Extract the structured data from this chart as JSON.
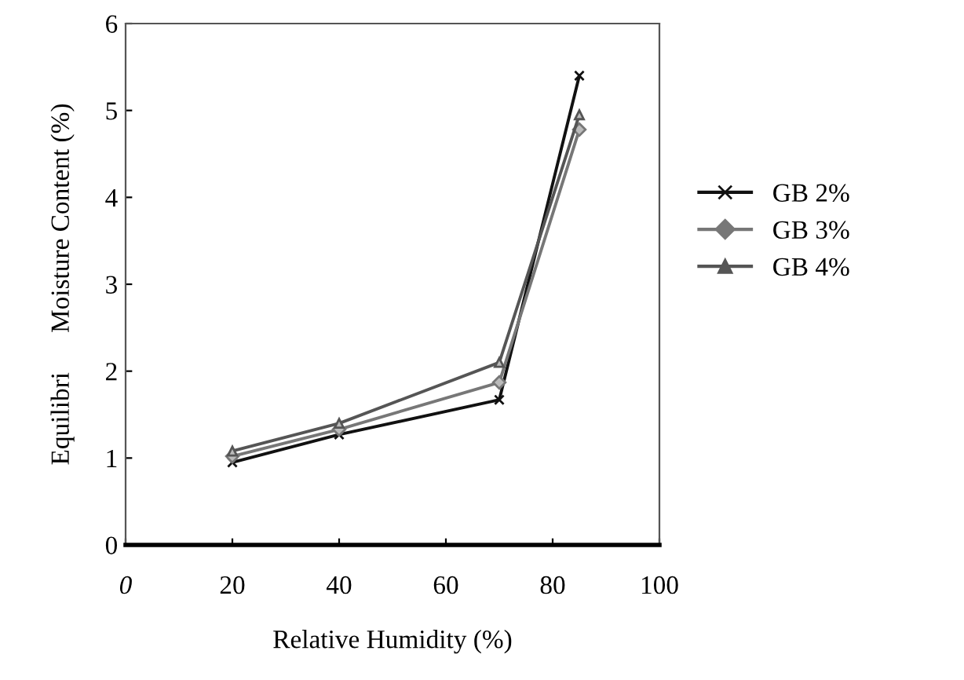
{
  "chart_data": {
    "type": "line",
    "xlabel": "Relative Humidity (%)",
    "ylabel": "Equilibri      Moisture Content (%)",
    "x": [
      20,
      40,
      70,
      85
    ],
    "series": [
      {
        "name": "GB 2%",
        "color": "#111111",
        "marker": "cross",
        "values": [
          0.95,
          1.27,
          1.67,
          5.4
        ]
      },
      {
        "name": "GB 3%",
        "color": "#777777",
        "marker": "diamond",
        "values": [
          1.02,
          1.33,
          1.87,
          4.78
        ]
      },
      {
        "name": "GB 4%",
        "color": "#555555",
        "marker": "triangle",
        "values": [
          1.08,
          1.4,
          2.1,
          4.95
        ]
      }
    ],
    "xlim": [
      0,
      100
    ],
    "xticks": [
      {
        "value": 0,
        "label": "0"
      },
      20,
      40,
      60,
      80,
      100
    ],
    "ylim": [
      0,
      6
    ],
    "yticks": [
      0,
      1,
      2,
      3,
      4,
      5,
      6
    ],
    "grid": false,
    "legend": "right",
    "line_style": "solid"
  }
}
